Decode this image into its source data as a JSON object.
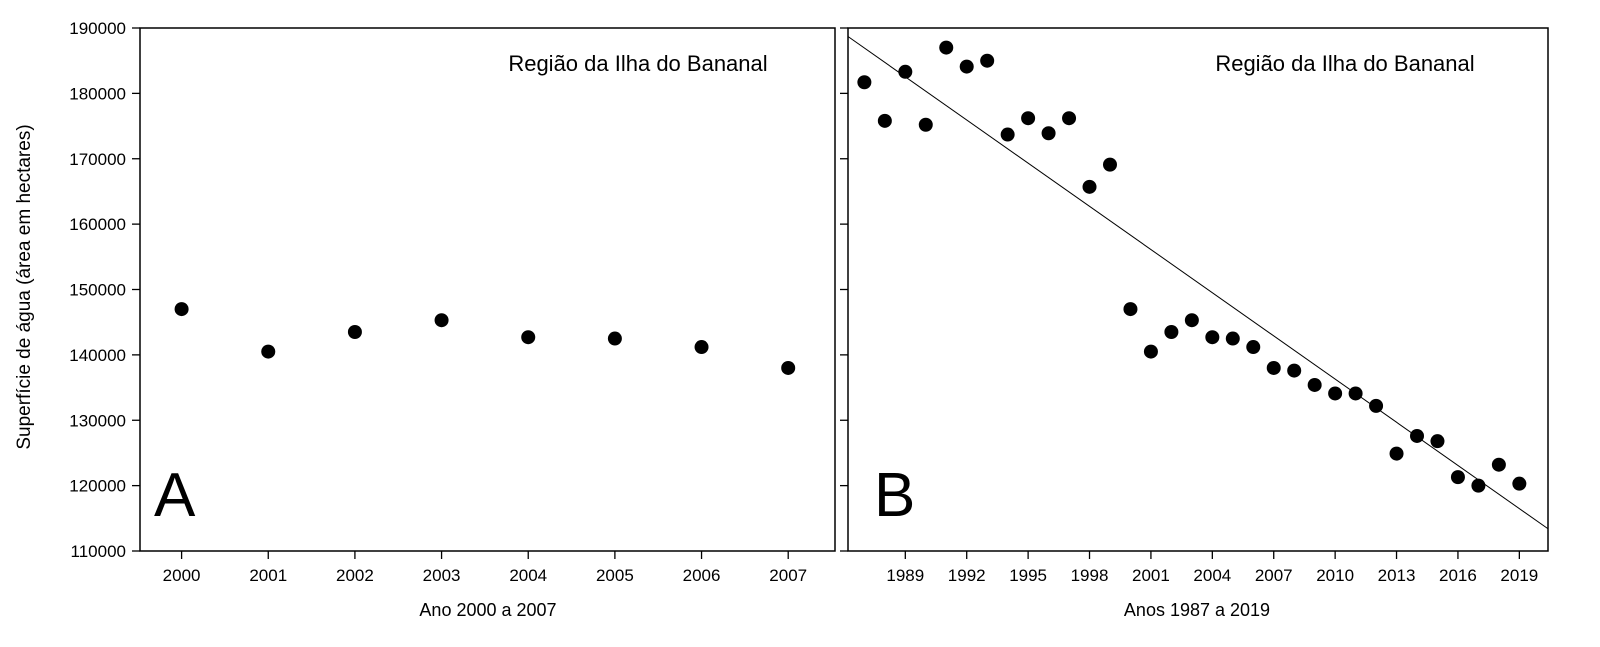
{
  "chart_data": [
    {
      "type": "scatter",
      "panel_label": "A",
      "title": "Região da Ilha do Bananal",
      "xlabel": "Ano 2000 a 2007",
      "ylabel": "Superfície de água (área em hectares)",
      "xlim": [
        1999.52,
        2007.54
      ],
      "ylim": [
        110000,
        190000
      ],
      "xticks": [
        2000,
        2001,
        2002,
        2003,
        2004,
        2005,
        2006,
        2007
      ],
      "yticks": [
        110000,
        120000,
        130000,
        140000,
        150000,
        160000,
        170000,
        180000,
        190000
      ],
      "x": [
        2000,
        2001,
        2002,
        2003,
        2004,
        2005,
        2006,
        2007
      ],
      "y": [
        147000,
        140500,
        143500,
        145300,
        142700,
        142500,
        141200,
        138000
      ]
    },
    {
      "type": "scatter",
      "panel_label": "B",
      "title": "Região da Ilha do Bananal",
      "xlabel": "Anos 1987 a 2019",
      "xlim": [
        1986.2,
        2020.4
      ],
      "ylim": [
        110000,
        190000
      ],
      "xticks": [
        1989,
        1992,
        1995,
        1998,
        2001,
        2004,
        2007,
        2010,
        2013,
        2016,
        2019
      ],
      "x": [
        1987,
        1988,
        1989,
        1990,
        1991,
        1992,
        1993,
        1994,
        1995,
        1996,
        1997,
        1998,
        1999,
        2000,
        2001,
        2002,
        2003,
        2004,
        2005,
        2006,
        2007,
        2008,
        2009,
        2010,
        2011,
        2012,
        2013,
        2014,
        2015,
        2016,
        2017,
        2018,
        2019
      ],
      "y": [
        181700,
        175800,
        183300,
        175200,
        187000,
        184100,
        185000,
        173700,
        176200,
        173900,
        176200,
        165700,
        169100,
        147000,
        140500,
        143500,
        145300,
        142700,
        142500,
        141200,
        138000,
        137600,
        135400,
        134100,
        134100,
        132200,
        124900,
        127600,
        126800,
        121300,
        120000,
        123200,
        120300
      ],
      "trendline": {
        "x": [
          1986.2,
          2020.4
        ],
        "y": [
          188700,
          113400
        ]
      }
    }
  ]
}
